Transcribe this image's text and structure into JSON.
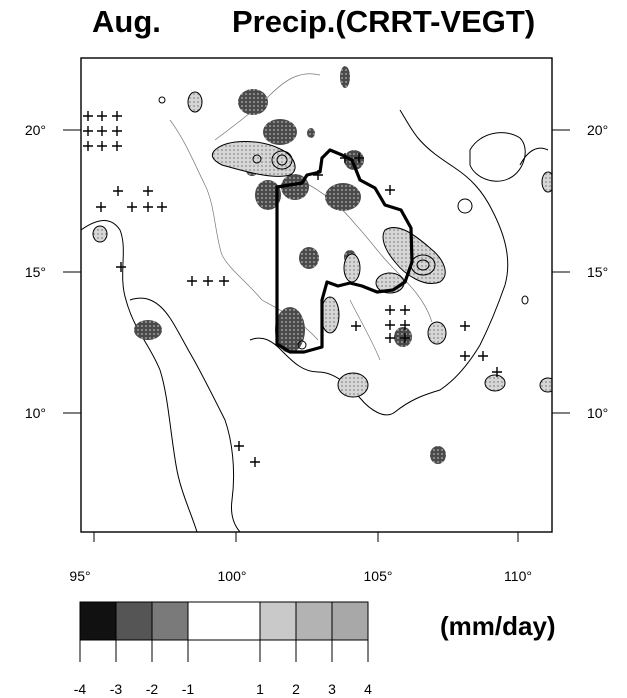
{
  "title": {
    "month": "Aug.",
    "main": "Precip.(CRRT-VEGT)"
  },
  "axes": {
    "lon_ticks": [
      "95°",
      "100°",
      "105°",
      "110°"
    ],
    "lat_ticks_left": [
      "20°",
      "15°",
      "10°"
    ],
    "lat_ticks_right": [
      "20°",
      "15°",
      "10°"
    ]
  },
  "colorbar": {
    "unit": "(mm/day)",
    "tick_labels": [
      "-4",
      "-3",
      "-2",
      "-1",
      "1",
      "2",
      "3",
      "4"
    ],
    "colors": [
      "#111111",
      "#555555",
      "#7a7a7a",
      "#ffffff",
      "#c9c9c9",
      "#b3b3b3",
      "#a8a8a8"
    ]
  },
  "map": {
    "lon_range": [
      94.5,
      111.2
    ],
    "lat_range": [
      6.2,
      22.6
    ],
    "ocean_color": "#ffffff",
    "neg_color": "#6a6a6a",
    "pos_color": "#c8c8c8"
  }
}
